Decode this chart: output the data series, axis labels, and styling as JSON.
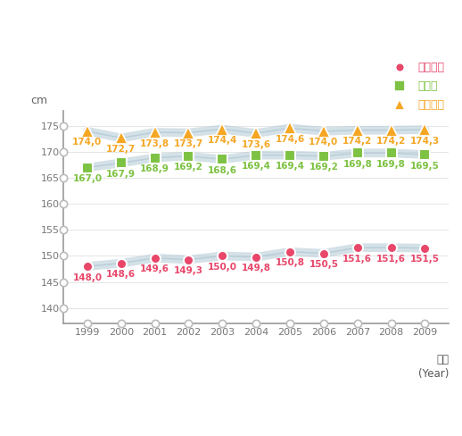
{
  "years": [
    1999,
    2000,
    2001,
    2002,
    2003,
    2004,
    2005,
    2006,
    2007,
    2008,
    2009
  ],
  "elementary": [
    148.0,
    148.6,
    149.6,
    149.3,
    150.0,
    149.8,
    150.8,
    150.5,
    151.6,
    151.6,
    151.5
  ],
  "middle": [
    167.0,
    167.9,
    168.9,
    169.2,
    168.6,
    169.4,
    169.4,
    169.2,
    169.8,
    169.8,
    169.5
  ],
  "high": [
    174.0,
    172.7,
    173.8,
    173.7,
    174.4,
    173.6,
    174.6,
    174.0,
    174.2,
    174.2,
    174.3
  ],
  "elementary_labels": [
    "148,0",
    "148,6",
    "149,6",
    "149,3",
    "150,0",
    "149,8",
    "150,8",
    "150,5",
    "151,6",
    "151,6",
    "151,5"
  ],
  "middle_labels": [
    "167,0",
    "167,9",
    "168,9",
    "169,2",
    "168,6",
    "169,4",
    "169,4",
    "169,2",
    "169,8",
    "169,8",
    "169,5"
  ],
  "high_labels": [
    "174,0",
    "172,7",
    "173,8",
    "173,7",
    "174,4",
    "173,6",
    "174,6",
    "174,0",
    "174,2",
    "174,2",
    "174,3"
  ],
  "elementary_color": "#E8476A",
  "middle_color": "#7DC242",
  "high_color": "#F5A623",
  "line_color": "#B8CDD8",
  "ylabel": "cm",
  "xlabel_line1": "연도",
  "xlabel_line2": "(Year)",
  "legend_elementary": "초등학교",
  "legend_middle": "중학교",
  "legend_high": "고등학교",
  "ylim": [
    137,
    178
  ],
  "yticks": [
    140,
    145,
    150,
    155,
    160,
    165,
    170,
    175
  ],
  "background_color": "#ffffff",
  "label_fontsize": 7.5,
  "legend_fontsize": 9,
  "tick_fontsize": 8,
  "axis_spine_color": "#999999",
  "circle_color": "#bbbbbb",
  "circle_face": "#ffffff"
}
